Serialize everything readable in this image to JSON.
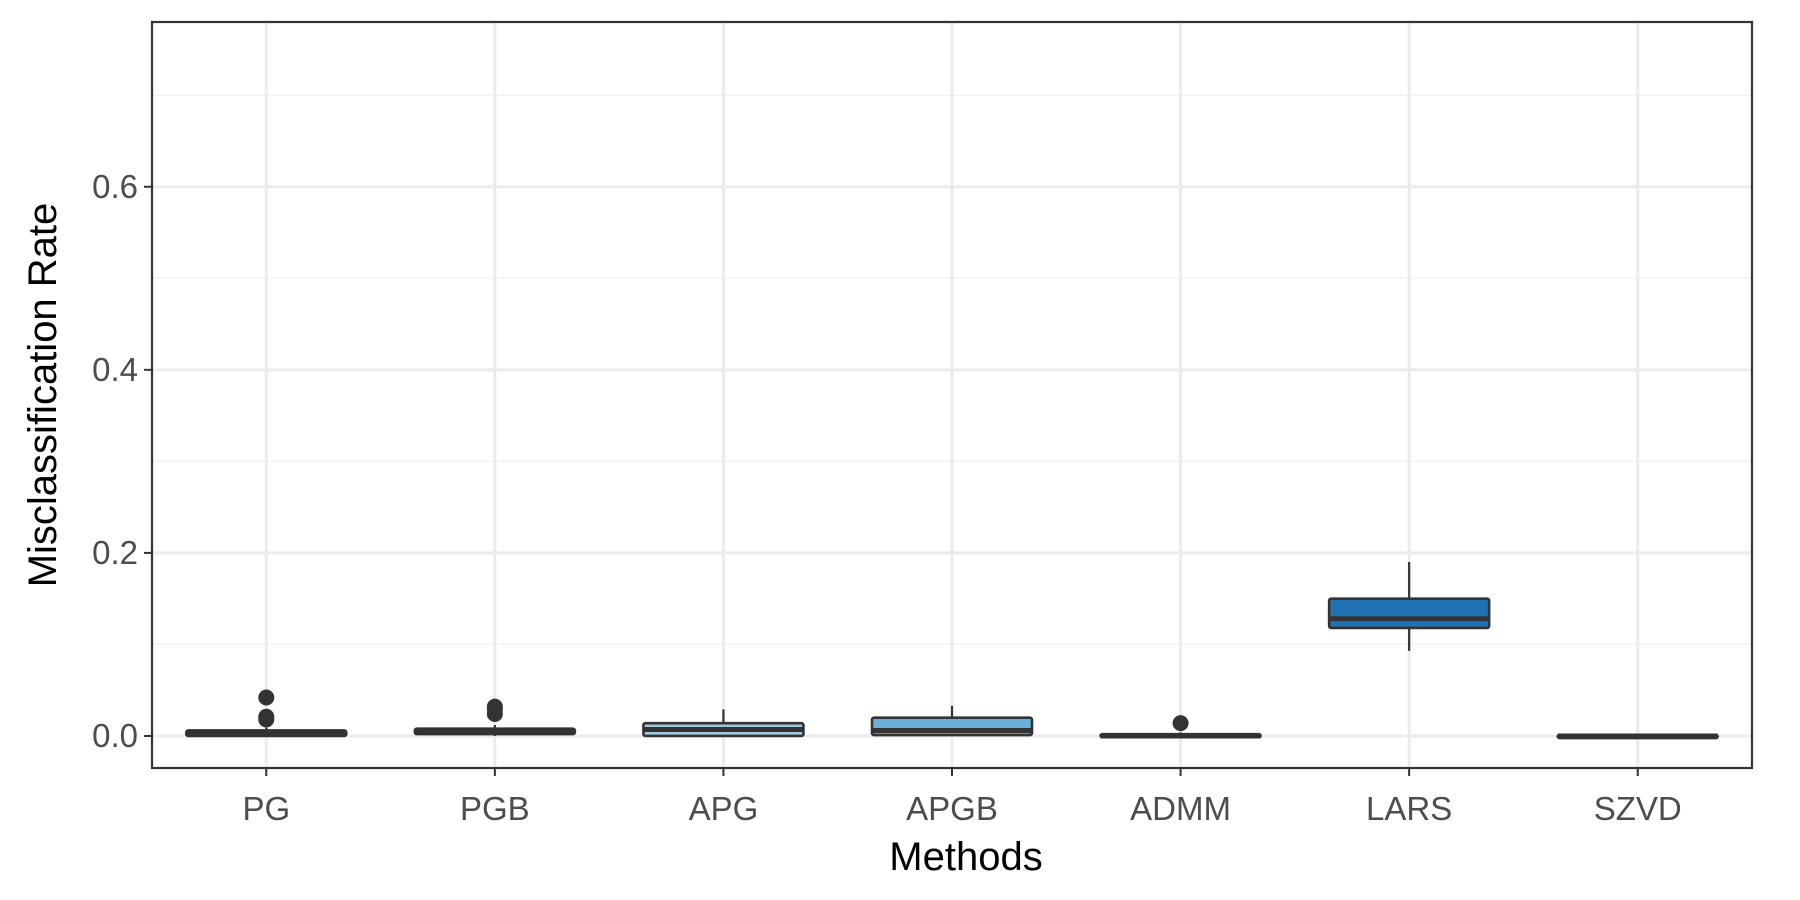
{
  "chart_data": {
    "type": "boxplot",
    "title": "",
    "xlabel": "Methods",
    "ylabel": "Misclassification Rate",
    "ylim": [
      -0.035,
      0.78
    ],
    "yticks": [
      0.0,
      0.2,
      0.4,
      0.6
    ],
    "ytick_labels": [
      "0.0",
      "0.2",
      "0.4",
      "0.6"
    ],
    "grid": true,
    "legend": "none",
    "categories": [
      "PG",
      "PGB",
      "APG",
      "APGB",
      "ADMM",
      "LARS",
      "SZVD"
    ],
    "boxes": [
      {
        "category": "PG",
        "whisker_low": 0.0,
        "q1": 0.0,
        "median": 0.003,
        "q3": 0.006,
        "whisker_high": 0.009,
        "outliers": [
          0.018,
          0.021,
          0.042
        ],
        "fill": "#3a3a3a"
      },
      {
        "category": "PGB",
        "whisker_low": 0.0,
        "q1": 0.002,
        "median": 0.005,
        "q3": 0.008,
        "whisker_high": 0.012,
        "outliers": [
          0.024,
          0.029,
          0.032
        ],
        "fill": "#3a3a3a"
      },
      {
        "category": "APG",
        "whisker_low": 0.0,
        "q1": 0.0,
        "median": 0.007,
        "q3": 0.014,
        "whisker_high": 0.029,
        "outliers": [],
        "fill": "#9ecae1"
      },
      {
        "category": "APGB",
        "whisker_low": 0.0,
        "q1": 0.001,
        "median": 0.006,
        "q3": 0.02,
        "whisker_high": 0.033,
        "outliers": [],
        "fill": "#6baed6"
      },
      {
        "category": "ADMM",
        "whisker_low": 0.0,
        "q1": 0.0,
        "median": 0.0,
        "q3": 0.002,
        "whisker_high": 0.004,
        "outliers": [
          0.014
        ],
        "fill": "#3a3a3a"
      },
      {
        "category": "LARS",
        "whisker_low": 0.093,
        "q1": 0.118,
        "median": 0.128,
        "q3": 0.15,
        "whisker_high": 0.19,
        "outliers": [],
        "fill": "#2171b5"
      },
      {
        "category": "SZVD",
        "whisker_low": 0.0,
        "q1": 0.0,
        "median": 0.0,
        "q3": 0.001,
        "whisker_high": 0.001,
        "outliers": [],
        "fill": "#3a3a3a"
      }
    ]
  }
}
